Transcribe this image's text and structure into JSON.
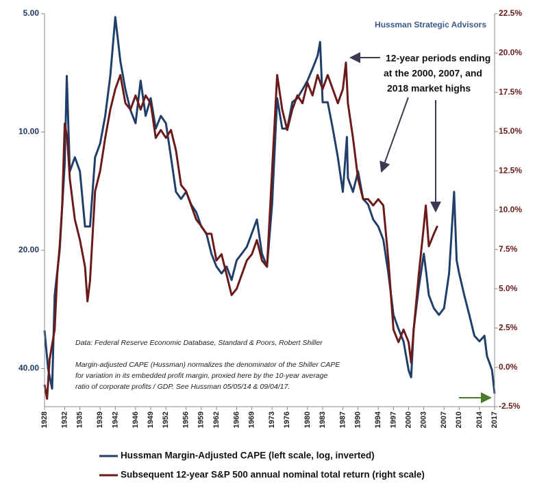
{
  "chart_data": {
    "type": "line",
    "source": "Hussman Strategic Advisors",
    "annotation": [
      "12-year periods ending",
      "at the 2000, 2007, and",
      "2018 market highs"
    ],
    "notes": [
      "Data: Federal Reserve Economic Database, Standard & Poors, Robert Shiller",
      "Margin-adjusted CAPE (Hussman) normalizes the denominator of the Shiller CAPE",
      "for variation in its embedded profit margin, proxied here by the 10-year average",
      "ratio of corporate profits / GDP. See Hussman 05/05/14 & 09/04/17."
    ],
    "xlim": [
      1928,
      2017
    ],
    "xticks": [
      1928,
      1932,
      1935,
      1939,
      1942,
      1946,
      1949,
      1952,
      1956,
      1959,
      1962,
      1966,
      1969,
      1973,
      1976,
      1980,
      1983,
      1987,
      1990,
      1994,
      1997,
      2000,
      2003,
      2007,
      2010,
      2014,
      2017
    ],
    "ylim": [
      5,
      50
    ],
    "ylog": true,
    "yinverted": true,
    "yticks": [
      {
        "value": 5,
        "label": "5.00"
      },
      {
        "value": 10,
        "label": "10.00"
      },
      {
        "value": 20,
        "label": "20.00"
      },
      {
        "value": 40,
        "label": "40.00"
      }
    ],
    "y2lim": [
      -2.5,
      22.5
    ],
    "y2ticks": [
      {
        "value": -2.5,
        "label": "-2.5%"
      },
      {
        "value": 0,
        "label": "0.0%"
      },
      {
        "value": 2.5,
        "label": "2.5%"
      },
      {
        "value": 5,
        "label": "5.0%"
      },
      {
        "value": 7.5,
        "label": "7.5%"
      },
      {
        "value": 10,
        "label": "10.0%"
      },
      {
        "value": 12.5,
        "label": "12.5%"
      },
      {
        "value": 15,
        "label": "15.0%"
      },
      {
        "value": 17.5,
        "label": "17.5%"
      },
      {
        "value": 20,
        "label": "20.0%"
      },
      {
        "value": 22.5,
        "label": "22.5%"
      }
    ],
    "series": [
      {
        "name": "Hussman Margin-Adjusted CAPE (left scale, log, inverted)",
        "color": "#1f3f6a",
        "axis": "y",
        "x": [
          1928,
          1928.7,
          1929.5,
          1930,
          1931,
          1932,
          1932.4,
          1933,
          1934,
          1935,
          1936,
          1937,
          1938,
          1939,
          1940,
          1941,
          1942,
          1943,
          1944,
          1945,
          1946,
          1947,
          1948,
          1949,
          1950,
          1951,
          1952,
          1953,
          1954,
          1955,
          1956,
          1957,
          1958,
          1959,
          1960,
          1961,
          1962,
          1963,
          1964,
          1965,
          1966,
          1967,
          1968,
          1969,
          1970,
          1971,
          1972,
          1973,
          1974,
          1975,
          1976,
          1977,
          1978,
          1979,
          1980,
          1981,
          1982,
          1982.5,
          1983,
          1984,
          1985,
          1986,
          1987,
          1987.8,
          1988,
          1989,
          1990,
          1991,
          1992,
          1993,
          1994,
          1995,
          1996,
          1997,
          1998,
          1999,
          2000,
          2000.5,
          2001,
          2002,
          2003,
          2003.5,
          2004,
          2005,
          2006,
          2007,
          2008,
          2009,
          2009.5,
          2010,
          2011,
          2012,
          2013,
          2014,
          2015,
          2015.5,
          2016,
          2016.5,
          2017
        ],
        "values": [
          32,
          40,
          45,
          26,
          20,
          12,
          7.2,
          12.6,
          11.6,
          12.6,
          17.4,
          17.4,
          11.6,
          10.7,
          9.1,
          7.2,
          5.1,
          6.6,
          7.8,
          8.8,
          9.5,
          7.4,
          9.1,
          8.2,
          9.8,
          9.1,
          9.5,
          11.6,
          14.2,
          14.8,
          14.2,
          15.3,
          16,
          17.4,
          18.1,
          20.4,
          22,
          22.9,
          22,
          23.8,
          21.2,
          20.4,
          19.6,
          18.1,
          16.7,
          20.4,
          22,
          15.3,
          8.2,
          9.8,
          9.8,
          8.4,
          8.2,
          7.8,
          7.4,
          6.9,
          6.4,
          5.9,
          8.4,
          8.4,
          9.8,
          11.6,
          14.2,
          10.3,
          13.1,
          14.2,
          12.6,
          14.8,
          15.3,
          16.7,
          17.4,
          18.8,
          22.9,
          29.2,
          31.7,
          34.1,
          40.4,
          42.1,
          31.7,
          24.9,
          20.4,
          22.9,
          26,
          28.1,
          29.2,
          28.1,
          22.9,
          14.2,
          21.2,
          22.9,
          26,
          29.2,
          33,
          34.1,
          33,
          37.2,
          38.7,
          40.4,
          46.3
        ]
      },
      {
        "name": "Subsequent 12-year S&P 500 annual nominal total return (right scale)",
        "color": "#6b1a1a",
        "axis": "y2",
        "x": [
          1928,
          1928.5,
          1929,
          1930,
          1930.5,
          1931,
          1931.5,
          1932,
          1932.5,
          1933,
          1934,
          1935,
          1936,
          1936.5,
          1937,
          1938,
          1939,
          1940,
          1941,
          1942,
          1943,
          1944,
          1945,
          1946,
          1947,
          1948,
          1949,
          1950,
          1951,
          1952,
          1953,
          1954,
          1955,
          1956,
          1957,
          1958,
          1959,
          1960,
          1961,
          1962,
          1963,
          1964,
          1965,
          1966,
          1967,
          1968,
          1969,
          1970,
          1971,
          1972,
          1973,
          1974,
          1975,
          1976,
          1977,
          1978,
          1979,
          1980,
          1981,
          1982,
          1983,
          1984,
          1985,
          1986,
          1987,
          1987.6,
          1988,
          1989,
          1990,
          1991,
          1992,
          1993,
          1994,
          1995,
          1996,
          1997,
          1998,
          1999,
          2000,
          2000.5,
          2001,
          2002,
          2003,
          2003.4,
          2004,
          2005,
          2005.7
        ],
        "values": [
          -1.1,
          -2,
          0.5,
          2.4,
          5.9,
          7.7,
          10.3,
          15.5,
          14.6,
          12,
          9.4,
          8.1,
          6.4,
          4.2,
          5.5,
          11.2,
          12.5,
          14.6,
          16.4,
          17.7,
          18.6,
          16.8,
          16.4,
          17.3,
          16.4,
          17.3,
          16.8,
          14.6,
          15.1,
          14.6,
          15.1,
          13.8,
          11.6,
          11.2,
          10.3,
          9.4,
          9,
          8.5,
          8.5,
          6.8,
          7.2,
          5.9,
          4.6,
          5,
          5.9,
          6.8,
          7.2,
          8.1,
          6.8,
          6.4,
          12.5,
          18.6,
          16.4,
          15.1,
          16.4,
          17.3,
          16.8,
          18.1,
          17.3,
          18.6,
          17.7,
          18.6,
          17.7,
          16.8,
          17.7,
          19.4,
          16.8,
          14.6,
          12,
          10.7,
          10.7,
          10.3,
          10.7,
          10.3,
          6.8,
          2.4,
          1.6,
          2.4,
          1.6,
          0.3,
          2.4,
          5.9,
          9,
          10.3,
          7.7,
          8.5,
          9
        ]
      }
    ]
  }
}
